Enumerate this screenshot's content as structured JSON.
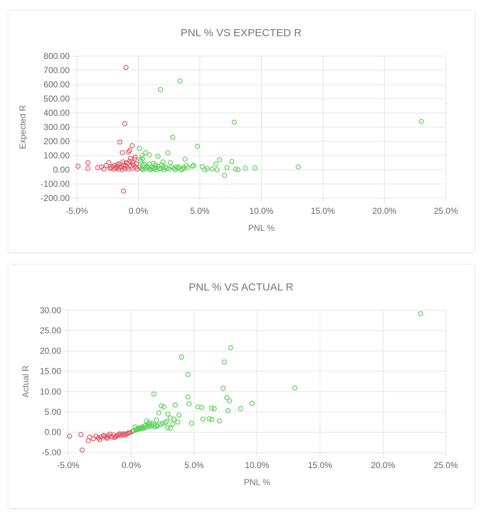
{
  "colors": {
    "positive": "#5fd35c",
    "negative": "#e05a6a"
  },
  "chart_data": [
    {
      "type": "scatter",
      "title": "PNL % VS EXPECTED R",
      "xlabel": "PNL %",
      "ylabel": "Expected R",
      "xlim": [
        -5,
        25
      ],
      "ylim": [
        -200,
        800
      ],
      "xticks": [
        "-5.0%",
        "0.0%",
        "5.0%",
        "10.0%",
        "15.0%",
        "20.0%",
        "25.0%"
      ],
      "yticks": [
        "800.00",
        "700.00",
        "600.00",
        "500.00",
        "400.00",
        "300.00",
        "200.00",
        "100.00",
        "0.00",
        "-100.00",
        "-200.00"
      ],
      "grid": true,
      "series": [
        {
          "color": "positive",
          "points": [
            [
              1.8,
              565
            ],
            [
              3.4,
              625
            ],
            [
              2.8,
              228
            ],
            [
              4.8,
              165
            ],
            [
              7.8,
              335
            ],
            [
              23.0,
              340
            ],
            [
              13.0,
              20
            ],
            [
              0.1,
              150
            ],
            [
              0.3,
              100
            ],
            [
              0.6,
              120
            ],
            [
              0.9,
              105
            ],
            [
              1.6,
              95
            ],
            [
              2.4,
              120
            ],
            [
              3.8,
              75
            ],
            [
              6.6,
              70
            ],
            [
              7.6,
              58
            ],
            [
              6.3,
              40
            ],
            [
              5.2,
              22
            ],
            [
              5.6,
              10
            ],
            [
              6.0,
              5
            ],
            [
              7.0,
              -40
            ],
            [
              8.7,
              10
            ],
            [
              9.5,
              12
            ],
            [
              4.4,
              25
            ],
            [
              4.5,
              30
            ],
            [
              3.1,
              20
            ],
            [
              3.3,
              18
            ],
            [
              0.2,
              60
            ],
            [
              0.5,
              40
            ],
            [
              1.2,
              45
            ],
            [
              1.9,
              35
            ],
            [
              2.2,
              20
            ],
            [
              2.6,
              50
            ],
            [
              2.9,
              10
            ],
            [
              3.6,
              5
            ],
            [
              4.0,
              15
            ],
            [
              5.4,
              0
            ],
            [
              6.4,
              0
            ],
            [
              7.2,
              15
            ],
            [
              7.9,
              5
            ],
            [
              8.1,
              0
            ],
            [
              0.1,
              20
            ],
            [
              0.2,
              10
            ],
            [
              0.3,
              5
            ],
            [
              0.4,
              0
            ],
            [
              0.6,
              10
            ],
            [
              0.7,
              25
            ],
            [
              0.8,
              15
            ],
            [
              0.9,
              5
            ],
            [
              1.0,
              0
            ],
            [
              1.1,
              20
            ],
            [
              1.2,
              10
            ],
            [
              1.3,
              5
            ],
            [
              1.4,
              15
            ],
            [
              1.5,
              0
            ],
            [
              1.6,
              25
            ],
            [
              1.7,
              10
            ],
            [
              1.8,
              5
            ],
            [
              2.0,
              15
            ],
            [
              2.1,
              0
            ],
            [
              2.3,
              10
            ],
            [
              2.5,
              5
            ],
            [
              2.7,
              20
            ],
            [
              3.0,
              0
            ],
            [
              3.2,
              10
            ],
            [
              3.5,
              0
            ],
            [
              3.7,
              15
            ],
            [
              0.4,
              30
            ],
            [
              0.9,
              40
            ],
            [
              1.4,
              35
            ],
            [
              2.0,
              55
            ],
            [
              0.15,
              70
            ],
            [
              0.35,
              80
            ],
            [
              3.9,
              30
            ]
          ]
        },
        {
          "color": "negative",
          "points": [
            [
              -1.0,
              720
            ],
            [
              -1.1,
              325
            ],
            [
              -0.5,
              170
            ],
            [
              -1.5,
              195
            ],
            [
              -0.7,
              135
            ],
            [
              -0.8,
              125
            ],
            [
              -1.3,
              120
            ],
            [
              -1.2,
              -150
            ],
            [
              -4.9,
              25
            ],
            [
              -4.1,
              50
            ],
            [
              -4.1,
              10
            ],
            [
              -3.3,
              15
            ],
            [
              -3.0,
              20
            ],
            [
              -2.8,
              5
            ],
            [
              -2.6,
              30
            ],
            [
              -2.4,
              50
            ],
            [
              -2.2,
              15
            ],
            [
              -2.0,
              5
            ],
            [
              -1.9,
              30
            ],
            [
              -1.8,
              10
            ],
            [
              -1.7,
              25
            ],
            [
              -1.6,
              5
            ],
            [
              -1.5,
              40
            ],
            [
              -1.4,
              15
            ],
            [
              -1.3,
              0
            ],
            [
              -1.2,
              30
            ],
            [
              -1.1,
              10
            ],
            [
              -1.0,
              50
            ],
            [
              -0.9,
              20
            ],
            [
              -0.8,
              5
            ],
            [
              -0.7,
              60
            ],
            [
              -0.6,
              25
            ],
            [
              -0.5,
              10
            ],
            [
              -0.4,
              35
            ],
            [
              -0.3,
              75
            ],
            [
              -0.2,
              20
            ],
            [
              -0.1,
              5
            ],
            [
              -0.25,
              90
            ],
            [
              -0.45,
              55
            ],
            [
              -0.65,
              80
            ],
            [
              -0.85,
              45
            ],
            [
              -1.05,
              30
            ],
            [
              -1.25,
              55
            ],
            [
              -1.45,
              20
            ],
            [
              -1.65,
              40
            ],
            [
              -1.85,
              15
            ],
            [
              -2.1,
              25
            ],
            [
              -2.3,
              10
            ],
            [
              -0.15,
              40
            ]
          ]
        }
      ]
    },
    {
      "type": "scatter",
      "title": "PNL % VS ACTUAL R",
      "xlabel": "PNL %",
      "ylabel": "Actual R",
      "xlim": [
        -5,
        25
      ],
      "ylim": [
        -5,
        30
      ],
      "xticks": [
        "-5.0%",
        "0.0%",
        "5.0%",
        "10.0%",
        "15.0%",
        "20.0%",
        "25.0%"
      ],
      "yticks": [
        "30.00",
        "25.00",
        "20.00",
        "15.00",
        "10.00",
        "5.00",
        "0.00",
        "-5.00"
      ],
      "grid": true,
      "series": [
        {
          "color": "positive",
          "points": [
            [
              23.0,
              29.2
            ],
            [
              7.9,
              20.8
            ],
            [
              4.0,
              18.5
            ],
            [
              7.4,
              17.3
            ],
            [
              4.5,
              14.2
            ],
            [
              13.0,
              10.9
            ],
            [
              7.3,
              10.8
            ],
            [
              1.8,
              9.4
            ],
            [
              4.5,
              8.7
            ],
            [
              7.6,
              8.5
            ],
            [
              7.8,
              7.7
            ],
            [
              9.6,
              7.1
            ],
            [
              3.5,
              6.7
            ],
            [
              4.6,
              7.0
            ],
            [
              2.4,
              6.5
            ],
            [
              2.6,
              6.2
            ],
            [
              5.3,
              6.2
            ],
            [
              5.6,
              6.1
            ],
            [
              6.4,
              5.9
            ],
            [
              6.6,
              5.8
            ],
            [
              8.7,
              5.8
            ],
            [
              7.7,
              5.3
            ],
            [
              2.2,
              4.8
            ],
            [
              2.9,
              4.5
            ],
            [
              3.8,
              4.2
            ],
            [
              3.1,
              3.5
            ],
            [
              2.0,
              3.0
            ],
            [
              3.4,
              3.2
            ],
            [
              5.7,
              3.2
            ],
            [
              6.2,
              3.3
            ],
            [
              6.4,
              3.1
            ],
            [
              7.0,
              2.8
            ],
            [
              4.8,
              2.2
            ],
            [
              1.2,
              2.8
            ],
            [
              1.4,
              2.4
            ],
            [
              2.7,
              2.3
            ],
            [
              3.7,
              2.5
            ],
            [
              2.9,
              1.1
            ],
            [
              3.1,
              1.0
            ],
            [
              0.3,
              1.3
            ],
            [
              0.5,
              0.9
            ],
            [
              0.7,
              1.1
            ],
            [
              0.9,
              1.3
            ],
            [
              1.1,
              1.6
            ],
            [
              1.3,
              1.8
            ],
            [
              1.5,
              2.0
            ],
            [
              1.7,
              2.1
            ],
            [
              0.1,
              0.2
            ],
            [
              0.2,
              0.4
            ],
            [
              0.4,
              0.6
            ],
            [
              0.6,
              0.8
            ],
            [
              0.8,
              0.9
            ],
            [
              1.0,
              1.0
            ],
            [
              1.2,
              1.2
            ],
            [
              1.4,
              1.4
            ],
            [
              1.6,
              1.5
            ],
            [
              1.8,
              1.6
            ],
            [
              2.0,
              1.7
            ],
            [
              2.3,
              1.9
            ],
            [
              2.5,
              2.2
            ],
            [
              0.15,
              0.3
            ],
            [
              0.35,
              0.5
            ],
            [
              0.55,
              0.7
            ],
            [
              0.75,
              0.9
            ],
            [
              0.95,
              1.1
            ],
            [
              1.9,
              1.3
            ],
            [
              2.1,
              1.5
            ],
            [
              3.3,
              2.0
            ],
            [
              2.8,
              2.6
            ]
          ]
        },
        {
          "color": "negative",
          "points": [
            [
              -4.9,
              -1.0
            ],
            [
              -4.0,
              -0.6
            ],
            [
              -3.9,
              -4.4
            ],
            [
              -3.3,
              -1.2
            ],
            [
              -3.0,
              -1.6
            ],
            [
              -2.8,
              -1.0
            ],
            [
              -2.6,
              -1.4
            ],
            [
              -2.4,
              -1.2
            ],
            [
              -2.2,
              -0.8
            ],
            [
              -2.0,
              -1.3
            ],
            [
              -1.8,
              -0.9
            ],
            [
              -1.6,
              -1.1
            ],
            [
              -1.4,
              -0.7
            ],
            [
              -1.2,
              -1.0
            ],
            [
              -1.0,
              -0.6
            ],
            [
              -0.8,
              -0.8
            ],
            [
              -0.6,
              -0.4
            ],
            [
              -0.4,
              -0.5
            ],
            [
              -0.2,
              -0.2
            ],
            [
              -0.1,
              -0.1
            ],
            [
              -1.9,
              -1.5
            ],
            [
              -1.5,
              -1.2
            ],
            [
              -1.1,
              -0.9
            ],
            [
              -0.7,
              -0.6
            ],
            [
              -0.3,
              -0.3
            ],
            [
              -2.5,
              -1.8
            ],
            [
              -3.4,
              -2.1
            ],
            [
              -1.3,
              -1.3
            ],
            [
              -0.9,
              -0.4
            ],
            [
              -0.5,
              -0.7
            ],
            [
              -1.7,
              -0.5
            ],
            [
              -2.1,
              -1.0
            ]
          ]
        }
      ]
    }
  ]
}
